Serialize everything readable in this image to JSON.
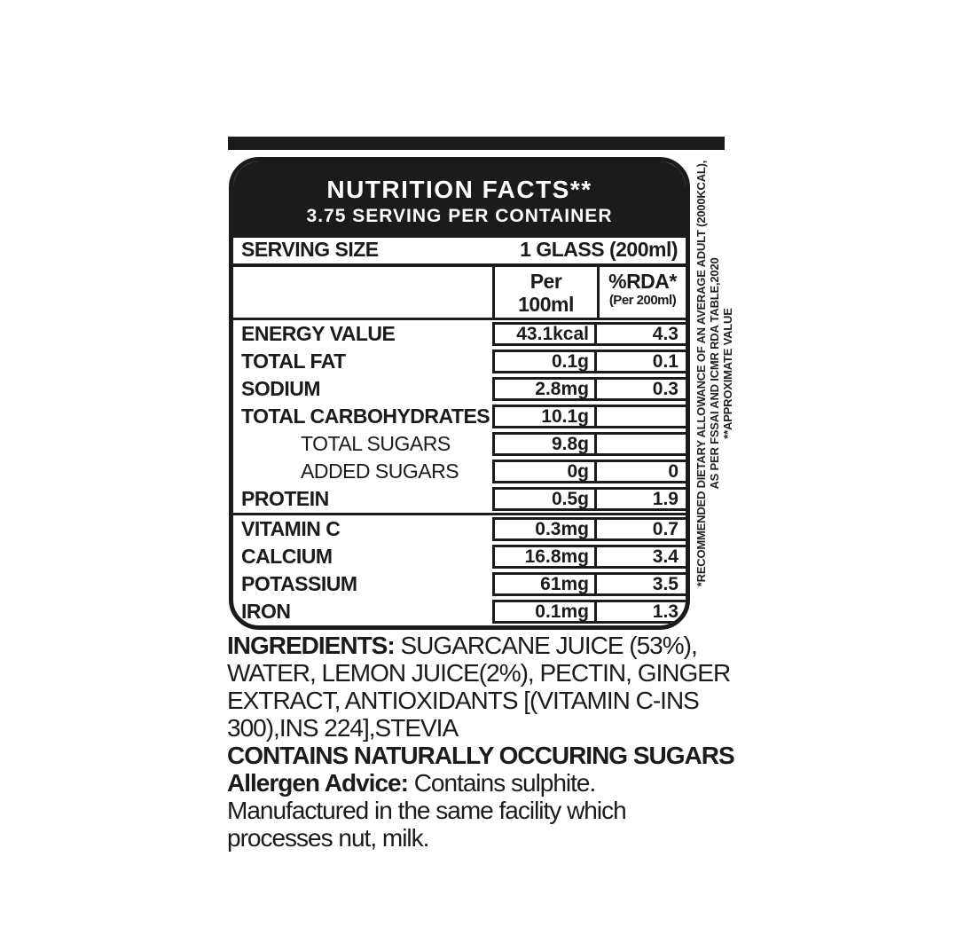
{
  "panel": {
    "title": "NUTRITION FACTS**",
    "servings_per_container": "3.75 SERVING PER CONTAINER",
    "serving_size_label": "SERVING SIZE",
    "serving_size_value": "1 GLASS (200ml)",
    "columns": {
      "per": [
        "Per",
        "100ml"
      ],
      "rda_title": "%RDA*",
      "rda_sub": "(Per 200ml)"
    },
    "rows": [
      {
        "label": "ENERGY VALUE",
        "value": "43.1kcal",
        "rda": "4.3"
      },
      {
        "label": "TOTAL FAT",
        "value": "0.1g",
        "rda": "0.1"
      },
      {
        "label": "SODIUM",
        "value": "2.8mg",
        "rda": "0.3"
      },
      {
        "label": "TOTAL CARBOHYDRATES",
        "value": "10.1g",
        "rda": ""
      },
      {
        "label": "TOTAL SUGARS",
        "value": "9.8g",
        "rda": "",
        "indent": true
      },
      {
        "label": "ADDED SUGARS",
        "value": "0g",
        "rda": "0",
        "indent": true
      },
      {
        "label": "PROTEIN",
        "value": "0.5g",
        "rda": "1.9",
        "divider_after": true
      },
      {
        "label": "VITAMIN C",
        "value": "0.3mg",
        "rda": "0.7"
      },
      {
        "label": "CALCIUM",
        "value": "16.8mg",
        "rda": "3.4"
      },
      {
        "label": "POTASSIUM",
        "value": "61mg",
        "rda": "3.5"
      },
      {
        "label": "IRON",
        "value": "0.1mg",
        "rda": "1.3"
      }
    ]
  },
  "footnotes": [
    "*RECOMMENDED DIETARY ALLOWANCE OF AN AVERAGE ADULT (2000KCAL),",
    "AS PER FSSAI AND ICMR RDA TABLE,2020",
    "**APPROXIMATE VALUE"
  ],
  "ingredients_lines": [
    {
      "segments": [
        {
          "text": "INGREDIENTS: ",
          "bold": true
        },
        {
          "text": "SUGARCANE JUICE (53%),",
          "bold": false
        }
      ]
    },
    {
      "segments": [
        {
          "text": "WATER, LEMON JUICE(2%), PECTIN, GINGER",
          "bold": false
        }
      ]
    },
    {
      "segments": [
        {
          "text": "EXTRACT, ANTIOXIDANTS [(VITAMIN C-INS",
          "bold": false
        }
      ]
    },
    {
      "segments": [
        {
          "text": "300),INS 224],STEVIA",
          "bold": false
        }
      ]
    },
    {
      "segments": [
        {
          "text": "CONTAINS NATURALLY OCCURING SUGARS",
          "bold": true
        }
      ]
    },
    {
      "segments": [
        {
          "text": "Allergen Advice: ",
          "bold": true
        },
        {
          "text": "Contains sulphite.",
          "bold": false
        }
      ]
    },
    {
      "segments": [
        {
          "text": "Manufactured in the same facility which",
          "bold": false
        }
      ]
    },
    {
      "segments": [
        {
          "text": "processes nut, milk.",
          "bold": false
        }
      ]
    }
  ],
  "colors": {
    "ink": "#1b1b1b",
    "background": "#ffffff"
  }
}
